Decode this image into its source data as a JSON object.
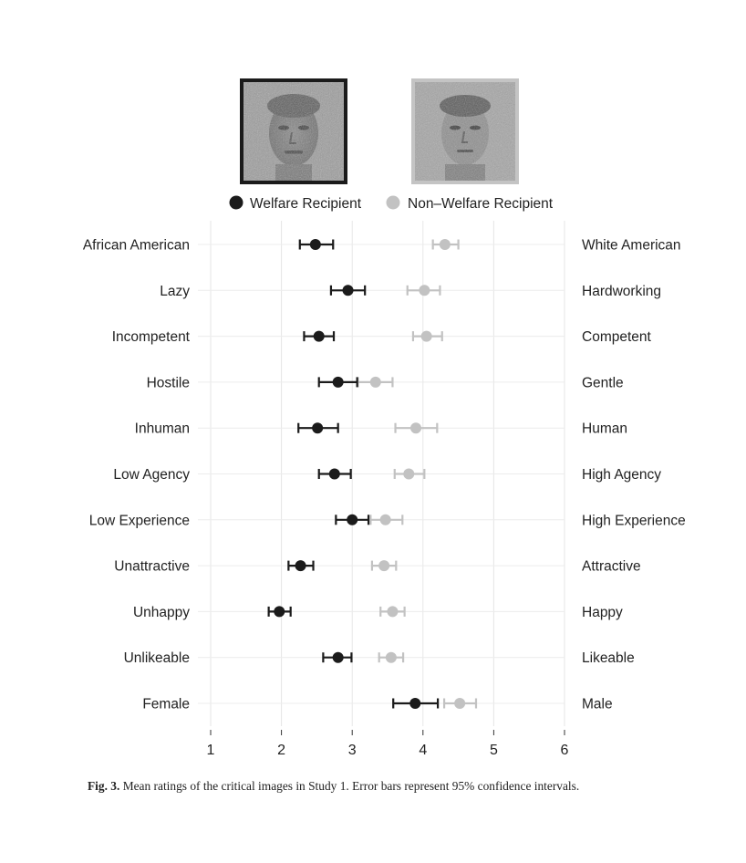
{
  "chart_data": {
    "type": "scatter",
    "title": "",
    "xlabel": "",
    "ylabel": "",
    "xlim": [
      1,
      6
    ],
    "xticks": [
      "1",
      "2",
      "3",
      "4",
      "5",
      "6"
    ],
    "grid": true,
    "legend_placement": "top",
    "categories_left": [
      "African American",
      "Lazy",
      "Incompetent",
      "Hostile",
      "Inhuman",
      "Low Agency",
      "Low Experience",
      "Unattractive",
      "Unhappy",
      "Unlikeable",
      "Female"
    ],
    "categories_right": [
      "White American",
      "Hardworking",
      "Competent",
      "Gentle",
      "Human",
      "High Agency",
      "High Experience",
      "Attractive",
      "Happy",
      "Likeable",
      "Male"
    ],
    "series": [
      {
        "name": "Welfare Recipient",
        "color": "#1b1b1b",
        "values": [
          2.48,
          2.94,
          2.53,
          2.8,
          2.51,
          2.75,
          3.0,
          2.27,
          1.97,
          2.8,
          3.89
        ],
        "ci_low": [
          2.26,
          2.7,
          2.32,
          2.53,
          2.24,
          2.53,
          2.77,
          2.1,
          1.82,
          2.59,
          3.58
        ],
        "ci_high": [
          2.73,
          3.18,
          2.74,
          3.07,
          2.8,
          2.98,
          3.23,
          2.45,
          2.13,
          2.99,
          4.21
        ]
      },
      {
        "name": "Non–Welfare Recipient",
        "color": "#c2c2c2",
        "values": [
          4.31,
          4.02,
          4.05,
          3.33,
          3.9,
          3.8,
          3.47,
          3.45,
          3.57,
          3.55,
          4.52
        ],
        "ci_low": [
          4.14,
          3.78,
          3.86,
          3.08,
          3.61,
          3.6,
          3.26,
          3.28,
          3.4,
          3.38,
          4.3
        ],
        "ci_high": [
          4.5,
          4.24,
          4.27,
          3.57,
          4.2,
          4.02,
          3.71,
          3.62,
          3.74,
          3.72,
          4.75
        ]
      }
    ]
  },
  "caption": {
    "label": "Fig. 3.",
    "text": "Mean ratings of the critical images in Study 1. Error bars represent 95% confidence intervals."
  }
}
